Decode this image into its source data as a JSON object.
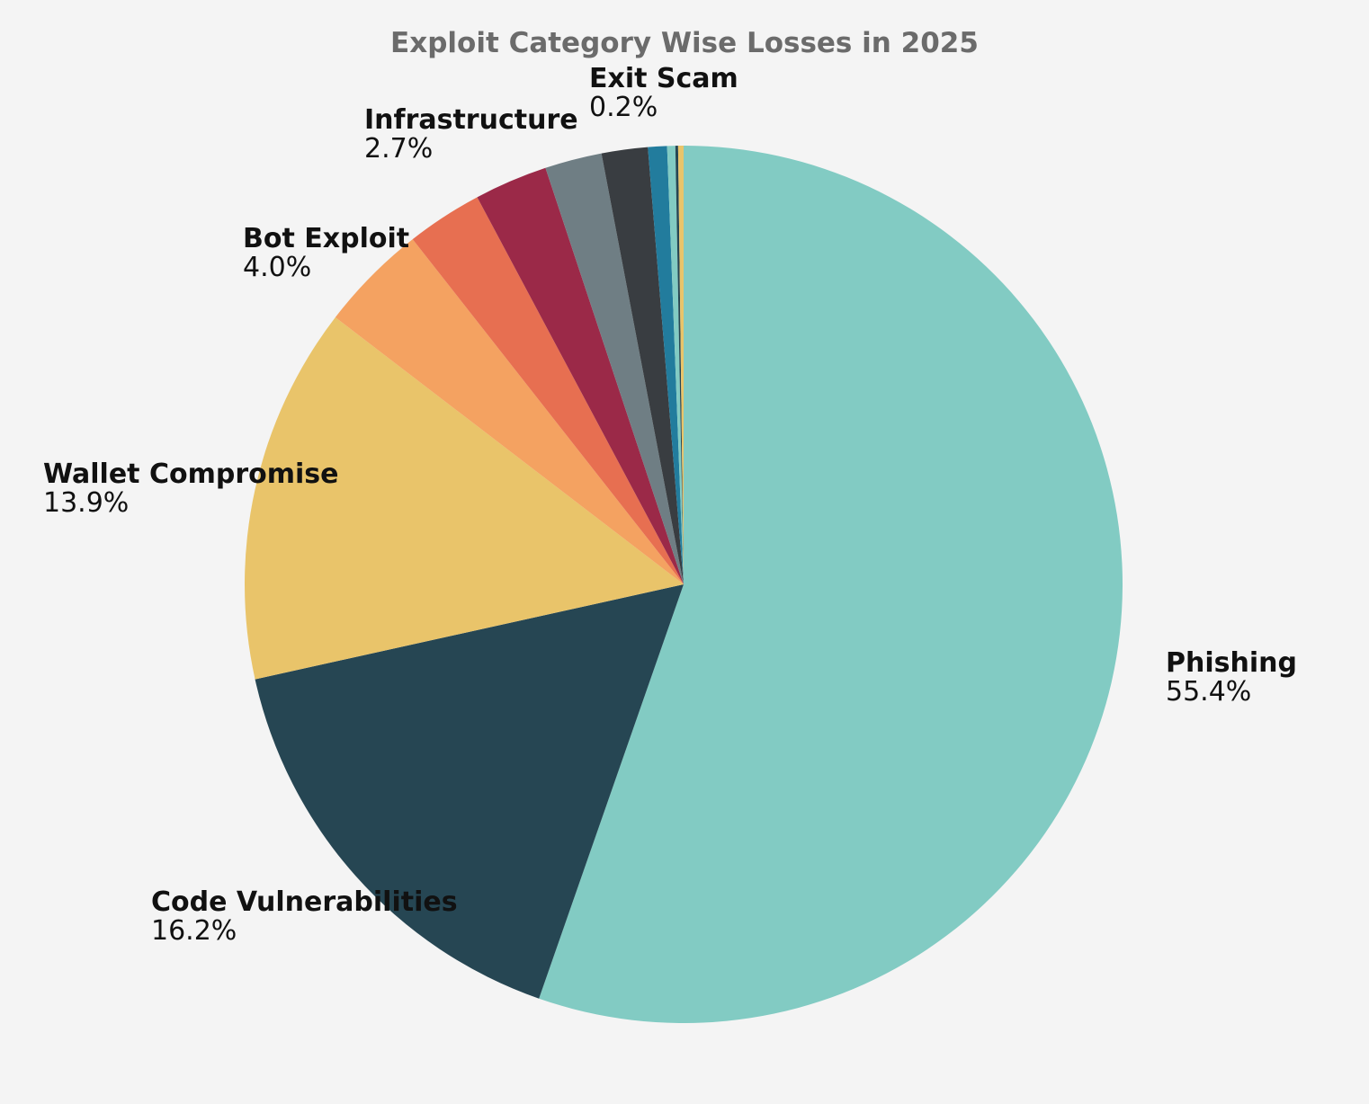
{
  "chart_data": {
    "type": "pie",
    "title": "Exploit Category Wise Losses in 2025",
    "start": "top",
    "direction": "clockwise",
    "slices": [
      {
        "name": "Phishing",
        "value": 55.4,
        "label": "55.4%",
        "color": "#82cbc3"
      },
      {
        "name": "Code Vulnerabilities",
        "value": 16.2,
        "label": "16.2%",
        "color": "#264653"
      },
      {
        "name": "Wallet Compromise",
        "value": 13.9,
        "label": "13.9%",
        "color": "#e9c46a"
      },
      {
        "name": "Bot Exploit",
        "value": 4.0,
        "label": "4.0%",
        "color": "#f4a261"
      },
      {
        "name": "",
        "value": 2.8,
        "label": "",
        "color": "#e76f51"
      },
      {
        "name": "Infrastructure",
        "value": 2.7,
        "label": "2.7%",
        "color": "#9b2948"
      },
      {
        "name": "",
        "value": 2.1,
        "label": "",
        "color": "#6f7e84"
      },
      {
        "name": "",
        "value": 1.7,
        "label": "",
        "color": "#393d41"
      },
      {
        "name": "",
        "value": 0.7,
        "label": "",
        "color": "#227c9d"
      },
      {
        "name": "",
        "value": 0.3,
        "label": "",
        "color": "#82cbc3"
      },
      {
        "name": "",
        "value": 0.1,
        "label": "",
        "color": "#264653"
      },
      {
        "name": "Exit Scam",
        "value": 0.2,
        "label": "0.2%",
        "color": "#e9c46a"
      }
    ]
  }
}
